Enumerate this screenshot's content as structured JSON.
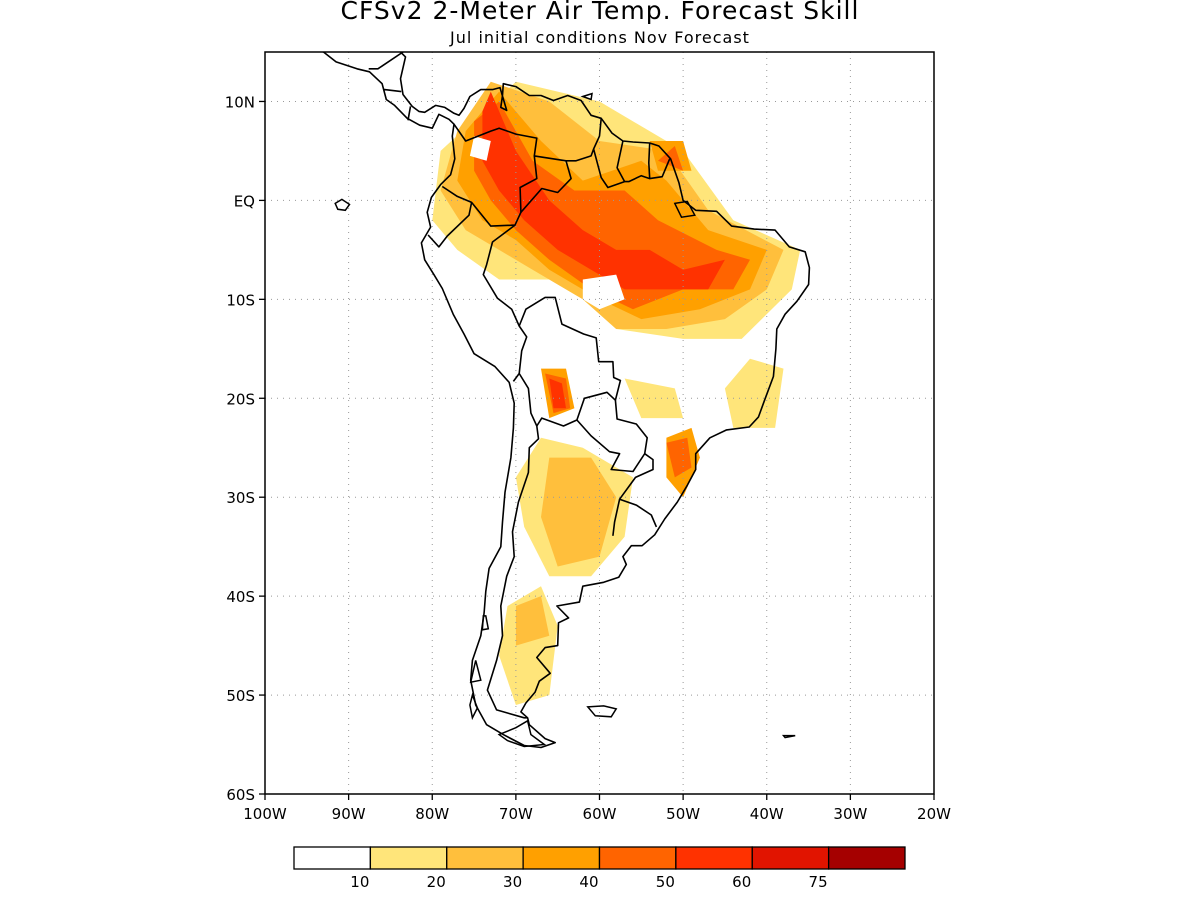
{
  "title": "CFSv2 2-Meter Air Temp. Forecast Skill",
  "subtitle": "Jul initial conditions  Nov Forecast",
  "lat_labels": [
    {
      "lat": 10,
      "label": "10N"
    },
    {
      "lat": 0,
      "label": "EQ"
    },
    {
      "lat": -10,
      "label": "10S"
    },
    {
      "lat": -20,
      "label": "20S"
    },
    {
      "lat": -30,
      "label": "30S"
    },
    {
      "lat": -40,
      "label": "40S"
    },
    {
      "lat": -50,
      "label": "50S"
    },
    {
      "lat": -60,
      "label": "60S"
    }
  ],
  "lon_labels": [
    {
      "lon": -100,
      "label": "100W"
    },
    {
      "lon": -90,
      "label": "90W"
    },
    {
      "lon": -80,
      "label": "80W"
    },
    {
      "lon": -70,
      "label": "70W"
    },
    {
      "lon": -60,
      "label": "60W"
    },
    {
      "lon": -50,
      "label": "50W"
    },
    {
      "lon": -40,
      "label": "40W"
    },
    {
      "lon": -30,
      "label": "30W"
    },
    {
      "lon": -20,
      "label": "20W"
    }
  ],
  "extent": {
    "lon_min": -100,
    "lon_max": -20,
    "lat_min": -60,
    "lat_max": 15
  },
  "colorbar": {
    "colors": [
      "#ffffff",
      "#ffe57a",
      "#ffbf3c",
      "#ffa000",
      "#ff6400",
      "#ff3200",
      "#e11400",
      "#a50000"
    ],
    "labels": [
      "10",
      "20",
      "30",
      "40",
      "50",
      "60",
      "75"
    ]
  },
  "skill_regions": [
    {
      "level": 1,
      "points": [
        [
          -79,
          5
        ],
        [
          -70,
          12
        ],
        [
          -60,
          10
        ],
        [
          -50,
          5
        ],
        [
          -44,
          -2
        ],
        [
          -36,
          -5
        ],
        [
          -37,
          -9
        ],
        [
          -43,
          -14
        ],
        [
          -50,
          -14
        ],
        [
          -58,
          -13
        ],
        [
          -62,
          -10
        ],
        [
          -66,
          -8
        ],
        [
          -72,
          -8
        ],
        [
          -77,
          -5
        ],
        [
          -80,
          -2
        ]
      ]
    },
    {
      "level": 1,
      "points": [
        [
          -67,
          -24
        ],
        [
          -62,
          -25
        ],
        [
          -56,
          -28
        ],
        [
          -57,
          -34
        ],
        [
          -61,
          -38
        ],
        [
          -66,
          -38
        ],
        [
          -69,
          -33
        ],
        [
          -70,
          -28
        ]
      ]
    },
    {
      "level": 1,
      "points": [
        [
          -71,
          -41
        ],
        [
          -67,
          -39
        ],
        [
          -65,
          -43
        ],
        [
          -66,
          -50
        ],
        [
          -70,
          -51
        ],
        [
          -72,
          -46
        ]
      ]
    },
    {
      "level": 1,
      "points": [
        [
          -42,
          -16
        ],
        [
          -38,
          -17
        ],
        [
          -39,
          -23
        ],
        [
          -44,
          -23
        ],
        [
          -45,
          -19
        ]
      ]
    },
    {
      "level": 1,
      "points": [
        [
          -57,
          -18
        ],
        [
          -51,
          -19
        ],
        [
          -50,
          -22
        ],
        [
          -55,
          -22
        ]
      ]
    },
    {
      "level": 2,
      "points": [
        [
          -77,
          7
        ],
        [
          -73,
          12
        ],
        [
          -66,
          10
        ],
        [
          -60,
          6
        ],
        [
          -52,
          5
        ],
        [
          -47,
          -1
        ],
        [
          -38,
          -5
        ],
        [
          -40,
          -9
        ],
        [
          -45,
          -12
        ],
        [
          -52,
          -13
        ],
        [
          -58,
          -13
        ],
        [
          -62,
          -10
        ],
        [
          -68,
          -7
        ],
        [
          -72,
          -5
        ],
        [
          -76,
          -3
        ],
        [
          -79,
          1
        ]
      ]
    },
    {
      "level": 2,
      "points": [
        [
          -66,
          -26
        ],
        [
          -61,
          -26
        ],
        [
          -58,
          -30
        ],
        [
          -60,
          -36
        ],
        [
          -65,
          -37
        ],
        [
          -67,
          -32
        ]
      ]
    },
    {
      "level": 2,
      "points": [
        [
          -70,
          -41
        ],
        [
          -67,
          -40
        ],
        [
          -66,
          -44
        ],
        [
          -70,
          -45
        ]
      ]
    },
    {
      "level": 3,
      "points": [
        [
          -76,
          7
        ],
        [
          -72,
          11
        ],
        [
          -67,
          6
        ],
        [
          -62,
          2
        ],
        [
          -55,
          4
        ],
        [
          -52,
          2
        ],
        [
          -47,
          -3
        ],
        [
          -40,
          -5
        ],
        [
          -42,
          -9
        ],
        [
          -48,
          -11
        ],
        [
          -55,
          -12
        ],
        [
          -60,
          -10
        ],
        [
          -66,
          -7
        ],
        [
          -70,
          -4
        ],
        [
          -74,
          -2
        ],
        [
          -77,
          2
        ]
      ]
    },
    {
      "level": 3,
      "points": [
        [
          -67,
          -17
        ],
        [
          -64,
          -17
        ],
        [
          -63,
          -21
        ],
        [
          -66,
          -22
        ]
      ]
    },
    {
      "level": 3,
      "points": [
        [
          -52,
          -24
        ],
        [
          -49,
          -23
        ],
        [
          -48,
          -26
        ],
        [
          -50,
          -30
        ],
        [
          -52,
          -28
        ]
      ]
    },
    {
      "level": 3,
      "points": [
        [
          -53,
          3
        ],
        [
          -49,
          3
        ],
        [
          -50,
          6
        ],
        [
          -54,
          6
        ]
      ]
    },
    {
      "level": 4,
      "points": [
        [
          -75,
          8
        ],
        [
          -72,
          10
        ],
        [
          -68,
          4
        ],
        [
          -63,
          1
        ],
        [
          -57,
          1
        ],
        [
          -53,
          -2
        ],
        [
          -46,
          -5
        ],
        [
          -42,
          -6
        ],
        [
          -44,
          -9
        ],
        [
          -50,
          -9
        ],
        [
          -56,
          -11
        ],
        [
          -61,
          -9
        ],
        [
          -66,
          -6
        ],
        [
          -70,
          -3
        ],
        [
          -73,
          0
        ],
        [
          -75,
          3
        ]
      ]
    },
    {
      "level": 4,
      "points": [
        [
          -66.5,
          -17.5
        ],
        [
          -64,
          -18
        ],
        [
          -63.5,
          -21
        ],
        [
          -65.5,
          -21.5
        ]
      ]
    },
    {
      "level": 4,
      "points": [
        [
          -52,
          -24.5
        ],
        [
          -49.5,
          -24
        ],
        [
          -49,
          -27
        ],
        [
          -51,
          -28
        ]
      ]
    },
    {
      "level": 4,
      "points": [
        [
          -53,
          4
        ],
        [
          -50,
          3
        ],
        [
          -51,
          5.5
        ]
      ]
    },
    {
      "level": 5,
      "points": [
        [
          -74,
          9
        ],
        [
          -73,
          11
        ],
        [
          -70,
          5
        ],
        [
          -66,
          0
        ],
        [
          -62,
          -3
        ],
        [
          -58,
          -5
        ],
        [
          -54,
          -5
        ],
        [
          -50,
          -7
        ],
        [
          -45,
          -6
        ],
        [
          -47,
          -9
        ],
        [
          -52,
          -9
        ],
        [
          -57,
          -9
        ],
        [
          -61,
          -7
        ],
        [
          -65,
          -5
        ],
        [
          -69,
          -2
        ],
        [
          -72,
          1
        ],
        [
          -74,
          4
        ]
      ]
    },
    {
      "level": 5,
      "points": [
        [
          -66,
          -18
        ],
        [
          -64.5,
          -18.5
        ],
        [
          -64,
          -21
        ],
        [
          -65.5,
          -21
        ]
      ]
    },
    {
      "level": 0,
      "points": [
        [
          -62,
          -8
        ],
        [
          -58,
          -7.5
        ],
        [
          -57,
          -10
        ],
        [
          -60,
          -11
        ],
        [
          -62,
          -10
        ]
      ]
    },
    {
      "level": 0,
      "points": [
        [
          -75,
          6.5
        ],
        [
          -73,
          6
        ],
        [
          -73.5,
          4
        ],
        [
          -75.5,
          4.5
        ]
      ]
    }
  ]
}
